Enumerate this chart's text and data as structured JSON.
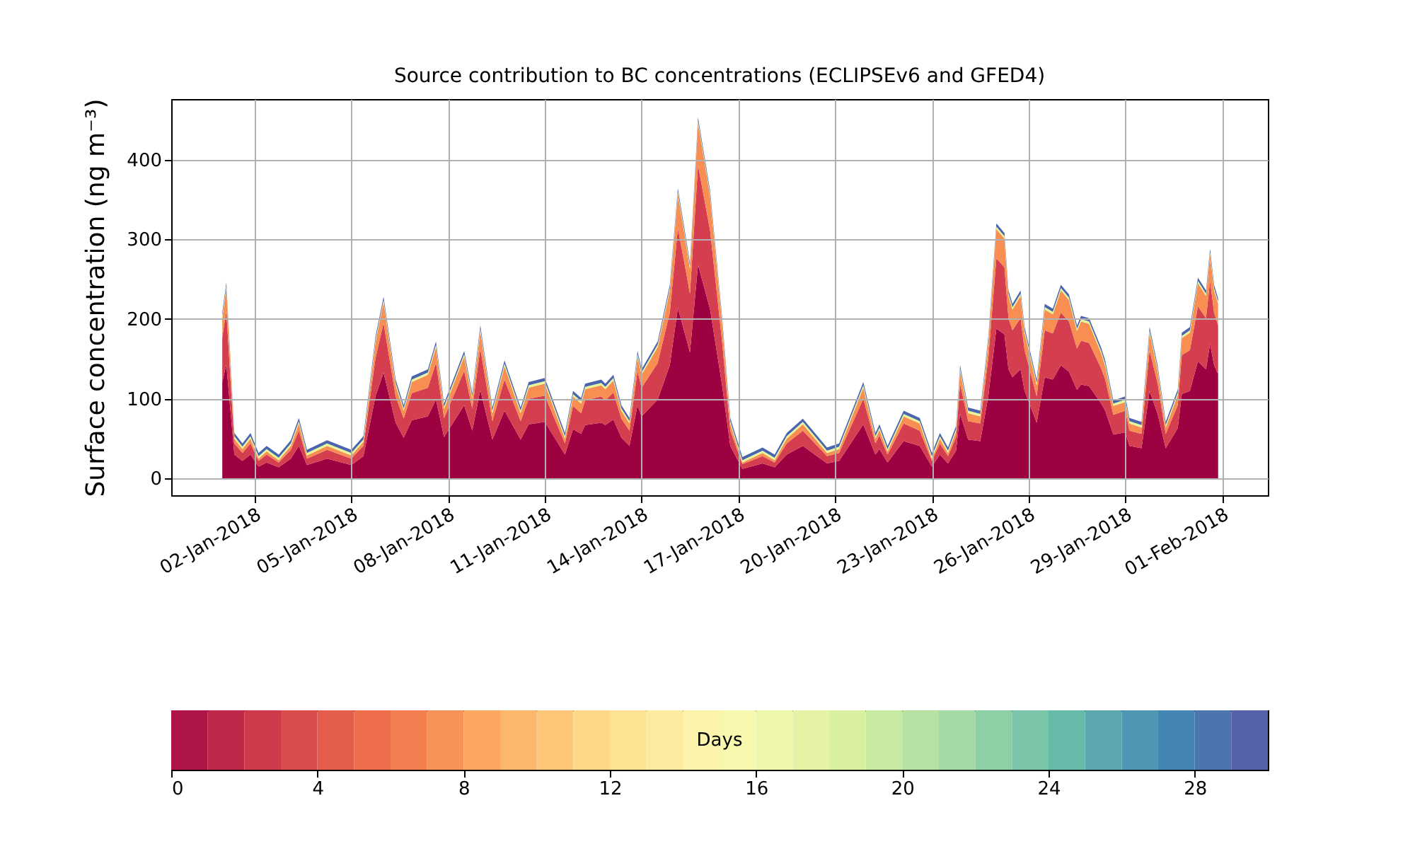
{
  "chart_data": {
    "type": "area",
    "stacked": true,
    "grid": true,
    "title": "Source contribution to BC concentrations (ECLIPSEv6 and GFED4)",
    "ylabel": "Surface concentration (ng m⁻³)",
    "clabel": "Days",
    "clim": [
      0,
      30
    ],
    "cticks": [
      0,
      4,
      8,
      12,
      16,
      20,
      24,
      28
    ],
    "xlim": [
      "2017-12-30T10:00",
      "2018-02-02T10:00"
    ],
    "ylim": [
      -21,
      476
    ],
    "yticks": [
      0,
      100,
      200,
      300,
      400
    ],
    "xticks": [
      {
        "value": "2018-01-02",
        "label": "02-Jan-2018"
      },
      {
        "value": "2018-01-05",
        "label": "05-Jan-2018"
      },
      {
        "value": "2018-01-08",
        "label": "08-Jan-2018"
      },
      {
        "value": "2018-01-11",
        "label": "11-Jan-2018"
      },
      {
        "value": "2018-01-14",
        "label": "14-Jan-2018"
      },
      {
        "value": "2018-01-17",
        "label": "17-Jan-2018"
      },
      {
        "value": "2018-01-20",
        "label": "20-Jan-2018"
      },
      {
        "value": "2018-01-23",
        "label": "23-Jan-2018"
      },
      {
        "value": "2018-01-26",
        "label": "26-Jan-2018"
      },
      {
        "value": "2018-01-29",
        "label": "29-Jan-2018"
      },
      {
        "value": "2018-02-01",
        "label": "01-Feb-2018"
      }
    ],
    "x": [
      "2018-01-01T00:00",
      "2018-01-01T03:00",
      "2018-01-01T09:00",
      "2018-01-01T15:00",
      "2018-01-01T21:00",
      "2018-01-02T03:00",
      "2018-01-02T09:00",
      "2018-01-02T18:00",
      "2018-01-03T03:00",
      "2018-01-03T09:00",
      "2018-01-03T15:00",
      "2018-01-04T06:00",
      "2018-01-05T00:00",
      "2018-01-05T09:00",
      "2018-01-05T18:00",
      "2018-01-06T00:00",
      "2018-01-06T09:00",
      "2018-01-06T15:00",
      "2018-01-06T21:00",
      "2018-01-07T09:00",
      "2018-01-07T15:00",
      "2018-01-07T21:00",
      "2018-01-08T12:00",
      "2018-01-08T18:00",
      "2018-01-09T00:00",
      "2018-01-09T09:00",
      "2018-01-09T18:00",
      "2018-01-10T06:00",
      "2018-01-10T12:00",
      "2018-01-11T00:00",
      "2018-01-11T15:00",
      "2018-01-11T21:00",
      "2018-01-12T03:00",
      "2018-01-12T06:00",
      "2018-01-12T18:00",
      "2018-01-12T21:00",
      "2018-01-13T03:00",
      "2018-01-13T09:00",
      "2018-01-13T15:00",
      "2018-01-13T21:00",
      "2018-01-14T00:00",
      "2018-01-14T12:00",
      "2018-01-14T21:00",
      "2018-01-15T03:00",
      "2018-01-15T09:00",
      "2018-01-15T12:00",
      "2018-01-15T18:00",
      "2018-01-16T03:00",
      "2018-01-16T12:00",
      "2018-01-16T18:00",
      "2018-01-17T03:00",
      "2018-01-17T18:00",
      "2018-01-18T03:00",
      "2018-01-18T12:00",
      "2018-01-19T00:00",
      "2018-01-19T18:00",
      "2018-01-20T03:00",
      "2018-01-20T21:00",
      "2018-01-21T06:00",
      "2018-01-21T09:00",
      "2018-01-21T15:00",
      "2018-01-22T03:00",
      "2018-01-22T15:00",
      "2018-01-23T00:00",
      "2018-01-23T06:00",
      "2018-01-23T12:00",
      "2018-01-23T18:00",
      "2018-01-23T21:00",
      "2018-01-24T03:00",
      "2018-01-24T12:00",
      "2018-01-24T18:00",
      "2018-01-25T00:00",
      "2018-01-25T06:00",
      "2018-01-25T09:00",
      "2018-01-25T12:00",
      "2018-01-25T18:00",
      "2018-01-25T21:00",
      "2018-01-26T06:00",
      "2018-01-26T12:00",
      "2018-01-26T18:00",
      "2018-01-27T00:00",
      "2018-01-27T06:00",
      "2018-01-27T12:00",
      "2018-01-27T15:00",
      "2018-01-27T21:00",
      "2018-01-28T06:00",
      "2018-01-28T09:00",
      "2018-01-28T15:00",
      "2018-01-29T00:00",
      "2018-01-29T03:00",
      "2018-01-29T12:00",
      "2018-01-29T18:00",
      "2018-01-30T00:00",
      "2018-01-30T06:00",
      "2018-01-30T15:00",
      "2018-01-30T18:00",
      "2018-01-31T00:00",
      "2018-01-31T06:00",
      "2018-01-31T12:00",
      "2018-01-31T15:00",
      "2018-01-31T18:00",
      "2018-01-31T21:00"
    ],
    "series": [
      {
        "color": "#9e0142",
        "values": [
          121,
          143,
          30,
          22,
          30,
          15,
          20,
          14,
          25,
          41,
          17,
          25,
          17,
          28,
          103,
          133,
          70,
          51,
          73,
          78,
          99,
          52,
          92,
          60,
          111,
          49,
          85,
          49,
          68,
          71,
          30,
          62,
          56,
          67,
          70,
          67,
          74,
          51,
          41,
          92,
          78,
          99,
          142,
          214,
          177,
          158,
          268,
          212,
          116,
          41,
          12,
          19,
          14,
          30,
          41,
          19,
          22,
          68,
          30,
          37,
          20,
          47,
          41,
          15,
          30,
          19,
          35,
          81,
          49,
          47,
          103,
          188,
          181,
          137,
          127,
          137,
          110,
          70,
          127,
          124,
          142,
          134,
          111,
          118,
          116,
          94,
          85,
          55,
          58,
          41,
          38,
          110,
          81,
          38,
          63,
          106,
          110,
          147,
          137,
          169,
          142,
          131
        ]
      },
      {
        "color": "#d53e4f",
        "values": [
          56,
          67,
          14,
          10,
          14,
          7,
          10,
          6,
          11,
          19,
          8,
          11,
          8,
          13,
          48,
          62,
          33,
          24,
          34,
          36,
          46,
          24,
          43,
          28,
          52,
          23,
          39,
          23,
          32,
          33,
          14,
          29,
          26,
          31,
          33,
          31,
          34,
          24,
          19,
          43,
          36,
          46,
          66,
          100,
          83,
          74,
          125,
          99,
          54,
          19,
          6,
          9,
          6,
          14,
          19,
          9,
          10,
          32,
          14,
          17,
          10,
          22,
          19,
          7,
          14,
          9,
          17,
          38,
          23,
          22,
          48,
          88,
          84,
          64,
          59,
          64,
          51,
          33,
          59,
          58,
          66,
          63,
          52,
          55,
          54,
          44,
          39,
          25,
          27,
          19,
          18,
          51,
          38,
          18,
          29,
          49,
          51,
          69,
          64,
          79,
          66,
          61
        ]
      },
      {
        "color": "#f98e52",
        "values": [
          24,
          29,
          6,
          5,
          6,
          3,
          4,
          3,
          5,
          9,
          4,
          5,
          4,
          5,
          20,
          26,
          14,
          10,
          14,
          16,
          20,
          11,
          18,
          12,
          22,
          10,
          17,
          10,
          14,
          15,
          6,
          12,
          12,
          14,
          14,
          14,
          15,
          10,
          9,
          18,
          16,
          20,
          28,
          43,
          35,
          31,
          53,
          43,
          24,
          9,
          2,
          4,
          3,
          6,
          8,
          4,
          5,
          14,
          6,
          7,
          4,
          9,
          9,
          3,
          6,
          4,
          7,
          16,
          10,
          9,
          20,
          37,
          36,
          28,
          26,
          28,
          22,
          14,
          26,
          24,
          28,
          27,
          22,
          24,
          24,
          19,
          17,
          11,
          11,
          9,
          8,
          22,
          16,
          8,
          13,
          21,
          22,
          29,
          28,
          33,
          28,
          27
        ]
      },
      {
        "color": "#e6f598",
        "values": [
          3,
          3,
          3,
          3,
          3,
          3,
          3,
          3,
          3,
          3,
          3,
          3,
          3,
          3,
          3,
          3,
          3,
          3,
          3,
          3,
          3,
          3,
          3,
          3,
          3,
          3,
          3,
          3,
          3,
          3,
          3,
          3,
          3,
          3,
          3,
          3,
          3,
          3,
          3,
          3,
          3,
          3,
          3,
          3,
          3,
          3,
          3,
          3,
          3,
          3,
          3,
          3,
          3,
          3,
          3,
          3,
          3,
          3,
          3,
          3,
          3,
          3,
          3,
          3,
          3,
          3,
          3,
          3,
          3,
          3,
          3,
          3,
          3,
          3,
          3,
          3,
          3,
          3,
          3,
          3,
          3,
          3,
          3,
          3,
          3,
          3,
          3,
          3,
          3,
          3,
          3,
          3,
          3,
          3,
          3,
          3,
          3,
          3,
          3,
          3,
          3,
          3
        ]
      },
      {
        "color": "#4a64ae",
        "values": [
          4,
          4,
          4,
          4,
          4,
          4,
          4,
          4,
          4,
          4,
          4,
          4,
          4,
          4,
          4,
          4,
          4,
          4,
          4,
          4,
          4,
          4,
          4,
          4,
          4,
          4,
          4,
          4,
          4,
          4,
          4,
          4,
          4,
          4,
          4,
          4,
          4,
          4,
          4,
          4,
          4,
          4,
          4,
          4,
          4,
          4,
          4,
          4,
          4,
          4,
          4,
          4,
          4,
          4,
          4,
          4,
          4,
          4,
          4,
          4,
          4,
          4,
          4,
          4,
          4,
          4,
          4,
          4,
          4,
          4,
          4,
          4,
          4,
          4,
          4,
          4,
          4,
          4,
          4,
          4,
          4,
          4,
          4,
          4,
          4,
          4,
          4,
          4,
          4,
          4,
          4,
          4,
          4,
          4,
          4,
          4,
          4,
          4,
          4,
          4,
          4,
          4
        ]
      }
    ]
  }
}
